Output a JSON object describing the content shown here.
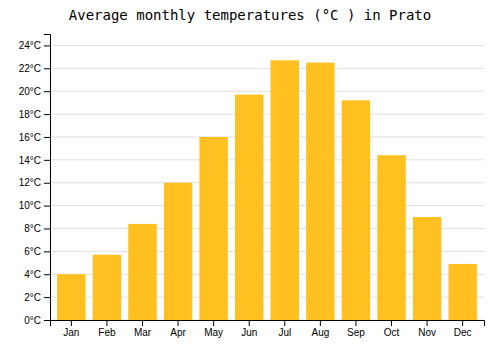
{
  "chart_data": {
    "type": "bar",
    "title": "Average monthly temperatures (°C ) in Prato",
    "categories": [
      "Jan",
      "Feb",
      "Mar",
      "Apr",
      "May",
      "Jun",
      "Jul",
      "Aug",
      "Sep",
      "Oct",
      "Nov",
      "Dec"
    ],
    "values": [
      4.0,
      5.7,
      8.4,
      12.0,
      16.0,
      19.7,
      22.7,
      22.5,
      19.2,
      14.4,
      9.0,
      4.9
    ],
    "color": "#FFC020",
    "ylim": [
      0,
      25
    ],
    "yticks": [
      {
        "value": 0,
        "label": "0°C"
      },
      {
        "value": 2,
        "label": "2°C"
      },
      {
        "value": 4,
        "label": "4°C"
      },
      {
        "value": 6,
        "label": "6°C"
      },
      {
        "value": 8,
        "label": "8°C"
      },
      {
        "value": 10,
        "label": "10°C"
      },
      {
        "value": 12,
        "label": "12°C"
      },
      {
        "value": 14,
        "label": "14°C"
      },
      {
        "value": 16,
        "label": "16°C"
      },
      {
        "value": 18,
        "label": "18°C"
      },
      {
        "value": 20,
        "label": "20°C"
      },
      {
        "value": 22,
        "label": "22°C"
      },
      {
        "value": 24,
        "label": "24°C"
      }
    ],
    "grid": true
  }
}
